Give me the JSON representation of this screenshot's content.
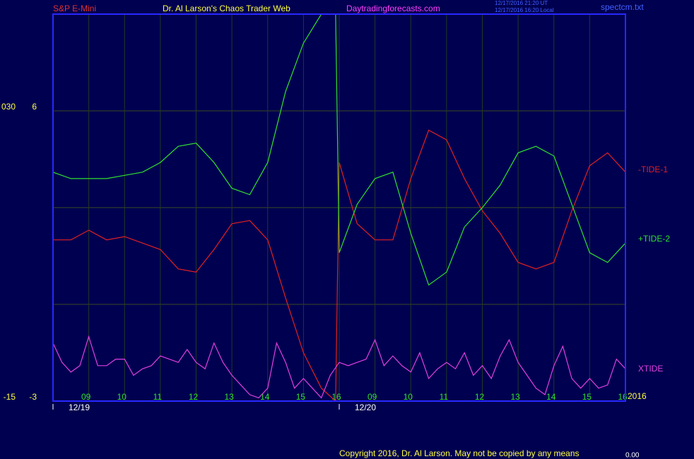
{
  "chart_data": {
    "type": "line",
    "title": "Dr. Al Larson's Chaos Trader Web",
    "symbol": "S&P E-Mini",
    "site": "Daytradingforecasts.com",
    "timestamps": [
      "12/17/2016 21:20 UT",
      "12/17/2016 16:20 Local"
    ],
    "file": "spectcm.txt",
    "copyright": "Copyright 2016, Dr. Al Larson. May not be copied by any means",
    "footer_value": "0.00",
    "year": "2016",
    "xlim": [
      0,
      16
    ],
    "ylim": [
      -3,
      9
    ],
    "yticks": [
      -3,
      6
    ],
    "ygrid": [
      0,
      3,
      6
    ],
    "y2lim": [
      -15,
      45
    ],
    "y2ticks": [
      -15,
      {
        "value": 30,
        "label": "030"
      }
    ],
    "xticks": [
      {
        "value": 1,
        "label": "09"
      },
      {
        "value": 2,
        "label": "10"
      },
      {
        "value": 3,
        "label": "11"
      },
      {
        "value": 4,
        "label": "12"
      },
      {
        "value": 5,
        "label": "13"
      },
      {
        "value": 6,
        "label": "14"
      },
      {
        "value": 7,
        "label": "15"
      },
      {
        "value": 8,
        "label": "16"
      },
      {
        "value": 9,
        "label": "09"
      },
      {
        "value": 10,
        "label": "10"
      },
      {
        "value": 11,
        "label": "11"
      },
      {
        "value": 12,
        "label": "12"
      },
      {
        "value": 13,
        "label": "13"
      },
      {
        "value": 14,
        "label": "14"
      },
      {
        "value": 15,
        "label": "15"
      },
      {
        "value": 16,
        "label": "16"
      }
    ],
    "date_ticks": [
      {
        "value": 0,
        "label": "12/19"
      },
      {
        "value": 8,
        "label": "12/20"
      }
    ],
    "series": [
      {
        "name": "-TIDE-1",
        "color": "#e02020",
        "x": [
          0,
          0.5,
          1,
          1.5,
          2,
          2.5,
          3,
          3.5,
          4,
          4.5,
          5,
          5.5,
          6,
          6.5,
          7,
          7.5,
          7.9,
          8,
          8.5,
          9,
          9.5,
          10,
          10.5,
          11,
          11.5,
          12,
          12.5,
          13,
          13.5,
          14,
          14.5,
          15,
          15.5,
          16
        ],
        "values": [
          2.0,
          2.0,
          2.3,
          2.0,
          2.1,
          1.9,
          1.7,
          1.1,
          1.0,
          1.7,
          2.5,
          2.6,
          2.0,
          0.2,
          -1.5,
          -2.6,
          -3.0,
          4.4,
          2.5,
          2.0,
          2.0,
          3.9,
          5.4,
          5.1,
          3.9,
          2.9,
          2.2,
          1.3,
          1.1,
          1.3,
          2.9,
          4.3,
          4.7,
          4.1
        ]
      },
      {
        "name": "+TIDE-2",
        "color": "#30e030",
        "x": [
          0,
          0.5,
          1,
          1.5,
          2,
          2.5,
          3,
          3.5,
          4,
          4.5,
          5,
          5.5,
          6,
          6.5,
          7,
          7.5,
          7.9,
          8,
          8.5,
          9,
          9.5,
          10,
          10.5,
          11,
          11.5,
          12,
          12.5,
          13,
          13.5,
          14,
          14.5,
          15,
          15.5,
          16
        ],
        "values": [
          4.1,
          3.9,
          3.9,
          3.9,
          4.0,
          4.1,
          4.4,
          4.9,
          5.0,
          4.4,
          3.6,
          3.4,
          4.4,
          6.6,
          8.1,
          9.0,
          9.0,
          1.6,
          3.1,
          3.9,
          4.1,
          2.2,
          0.6,
          1.0,
          2.4,
          3.0,
          3.7,
          4.7,
          4.9,
          4.6,
          3.1,
          1.6,
          1.3,
          1.9
        ]
      },
      {
        "name": "XTIDE",
        "color": "#e040e0",
        "x": [
          0,
          0.25,
          0.5,
          0.75,
          1,
          1.25,
          1.5,
          1.75,
          2,
          2.25,
          2.5,
          2.75,
          3,
          3.25,
          3.5,
          3.75,
          4,
          4.25,
          4.5,
          4.75,
          5,
          5.25,
          5.5,
          5.75,
          6,
          6.25,
          6.5,
          6.75,
          7,
          7.25,
          7.5,
          7.75,
          8,
          8.25,
          8.5,
          8.75,
          9,
          9.25,
          9.5,
          9.75,
          10,
          10.25,
          10.5,
          10.75,
          11,
          11.25,
          11.5,
          11.75,
          12,
          12.25,
          12.5,
          12.75,
          13,
          13.25,
          13.5,
          13.75,
          14,
          14.25,
          14.5,
          14.75,
          15,
          15.25,
          15.5,
          15.75,
          16
        ],
        "values": [
          -1.2,
          -1.8,
          -2.1,
          -1.9,
          -1.0,
          -1.9,
          -1.9,
          -1.7,
          -1.7,
          -2.2,
          -2.0,
          -1.9,
          -1.6,
          -1.7,
          -1.8,
          -1.4,
          -1.8,
          -2.0,
          -1.2,
          -1.8,
          -2.2,
          -2.5,
          -2.8,
          -2.9,
          -2.6,
          -1.2,
          -1.8,
          -2.6,
          -2.3,
          -2.6,
          -2.9,
          -2.2,
          -1.8,
          -1.9,
          -1.8,
          -1.7,
          -1.1,
          -1.9,
          -1.6,
          -1.9,
          -2.1,
          -1.5,
          -2.3,
          -2.0,
          -1.8,
          -2.0,
          -1.5,
          -2.2,
          -1.9,
          -2.3,
          -1.6,
          -1.1,
          -1.8,
          -2.2,
          -2.6,
          -2.8,
          -1.9,
          -1.3,
          -2.3,
          -2.6,
          -2.3,
          -2.6,
          -2.5,
          -1.7,
          -2.0
        ]
      }
    ]
  }
}
